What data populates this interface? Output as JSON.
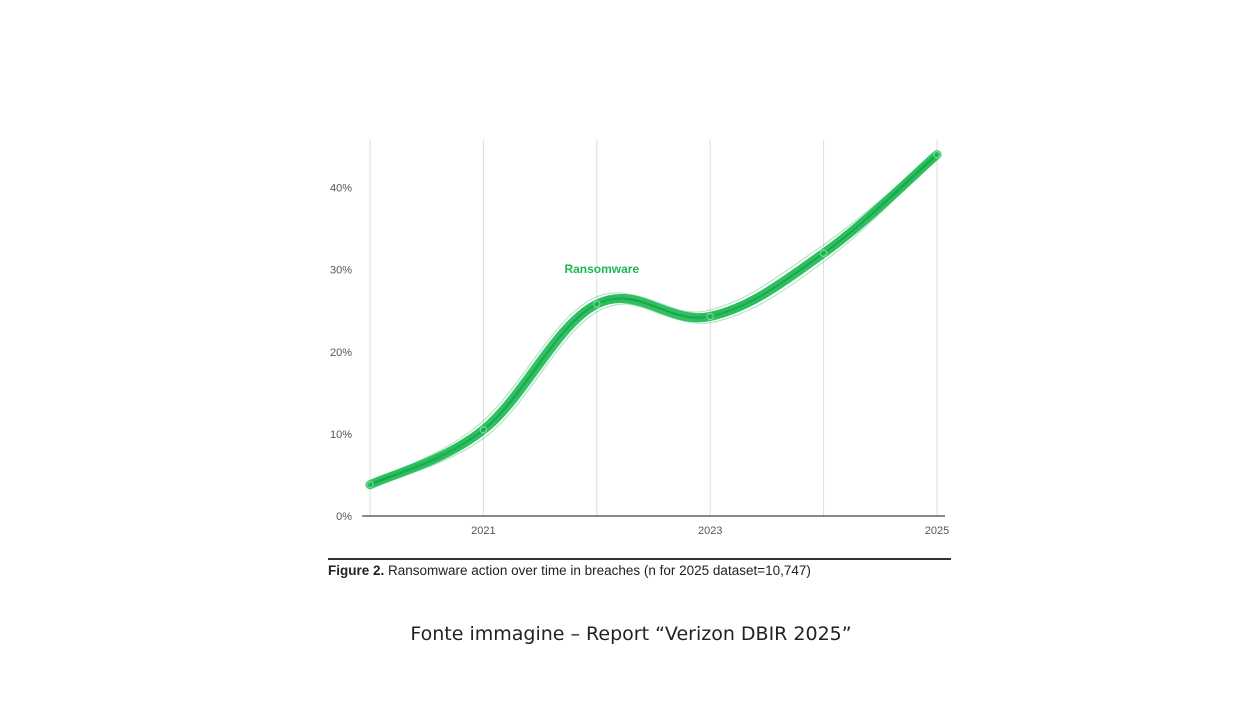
{
  "chart_data": {
    "type": "line",
    "title": "",
    "xlabel": "",
    "ylabel": "",
    "x": [
      2020,
      2021,
      2022,
      2023,
      2024,
      2025
    ],
    "xticks": [
      "2021",
      "2023",
      "2025"
    ],
    "yticks": [
      "0%",
      "10%",
      "20%",
      "30%",
      "40%"
    ],
    "ylim": [
      0,
      45
    ],
    "grid": "vertical",
    "series": [
      {
        "name": "Ransomware",
        "values": [
          3.8,
          10.5,
          25.8,
          24.3,
          32.0,
          44.0
        ],
        "color": "#1db954"
      }
    ]
  },
  "caption": {
    "label": "Figure 2.",
    "text": " Ransomware action over time in breaches (n for 2025 dataset=10,747)"
  },
  "source_text": "Fonte immagine – Report “Verizon DBIR 2025”"
}
